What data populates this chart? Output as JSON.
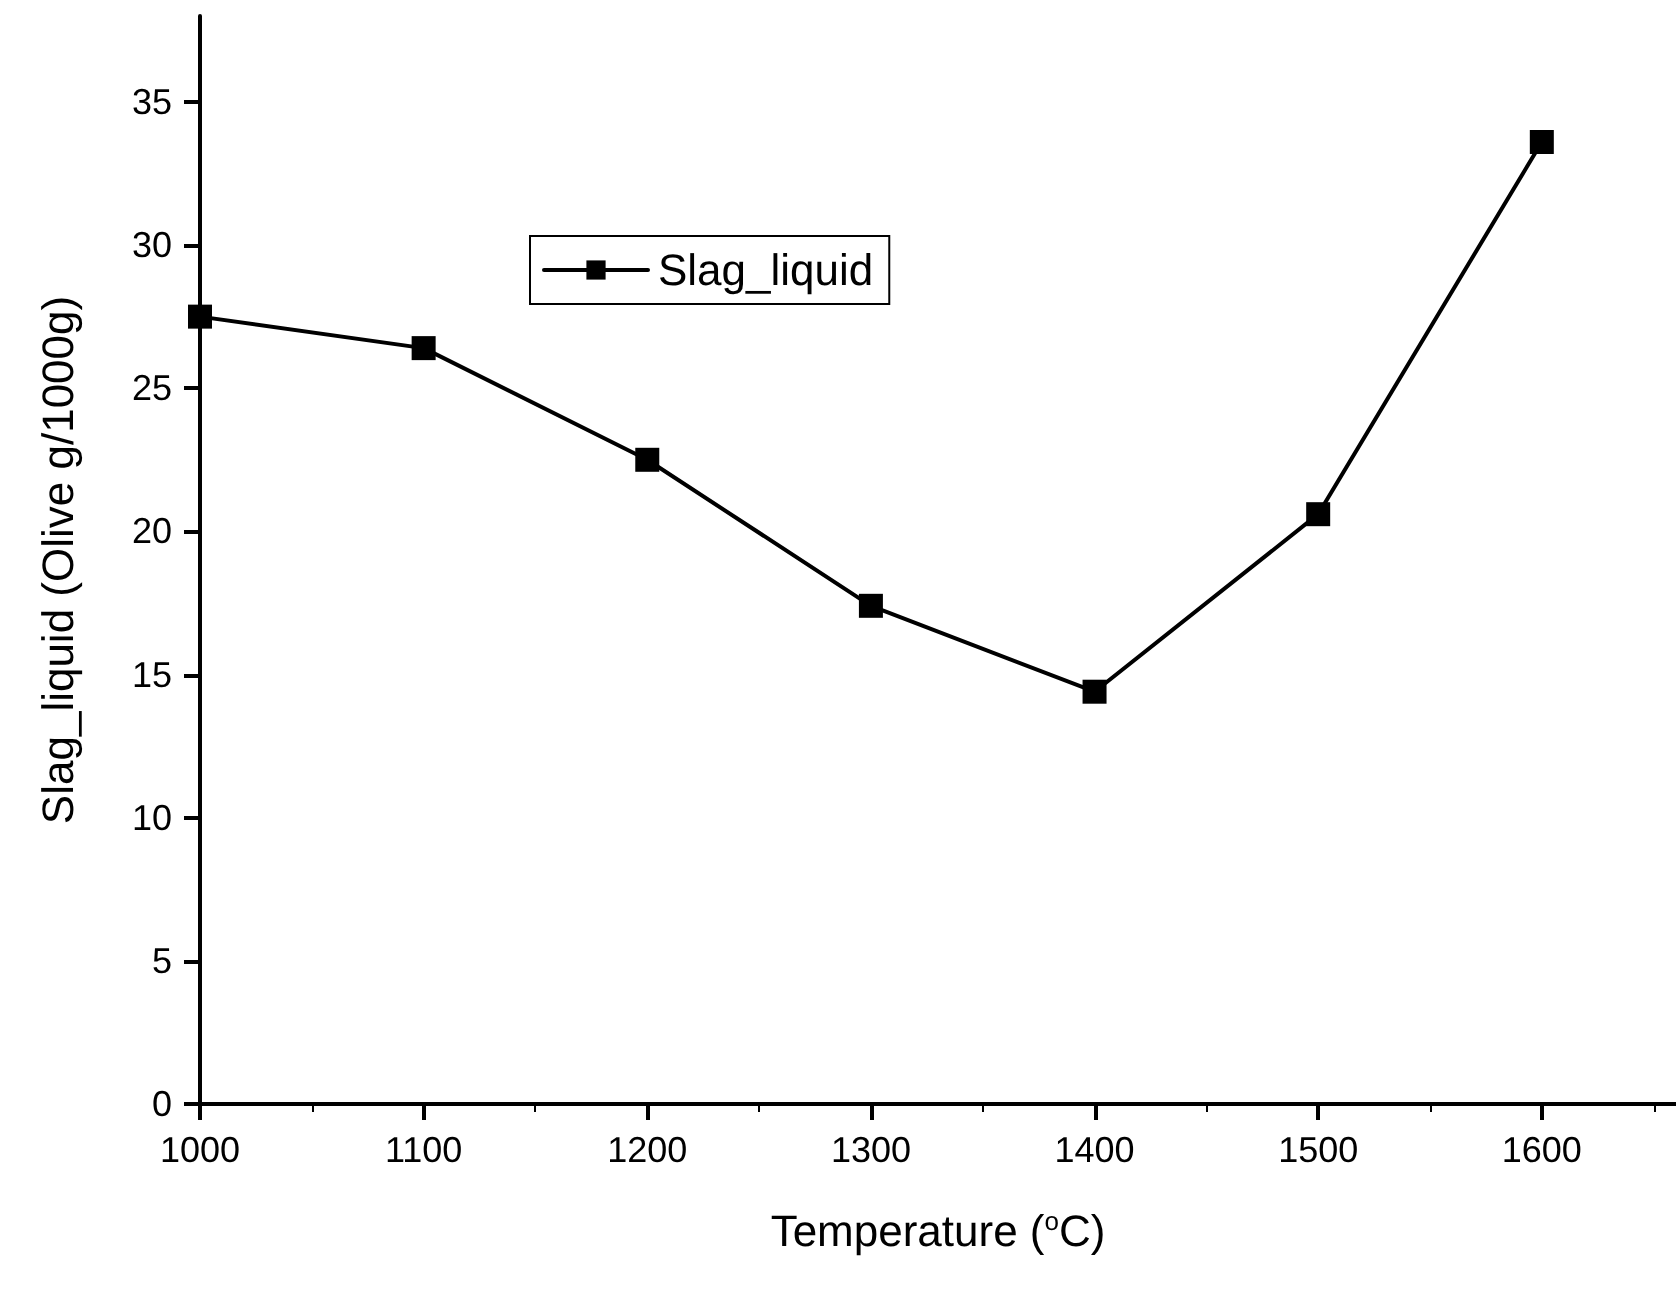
{
  "chart_data": {
    "type": "line",
    "xlabel": "Temperature ($^{o}$C)",
    "ylabel": "Slag_liquid (Olive g/1000g)",
    "x": [
      1000,
      1100,
      1200,
      1300,
      1400,
      1500,
      1600
    ],
    "series": [
      {
        "name": "Slag_liquid",
        "color": "#000000",
        "values": [
          27.5,
          26.4,
          22.5,
          17.4,
          14.4,
          20.6,
          33.6
        ]
      }
    ],
    "xlim": [
      1000,
      1660
    ],
    "xticks": [
      1000,
      1100,
      1200,
      1300,
      1400,
      1500,
      1600
    ],
    "ylim": [
      0,
      38
    ],
    "yticks": [
      0,
      5,
      10,
      15,
      20,
      25,
      30,
      35
    ],
    "marker": "square",
    "line_style": "solid",
    "legend": "top",
    "grid": false
  }
}
